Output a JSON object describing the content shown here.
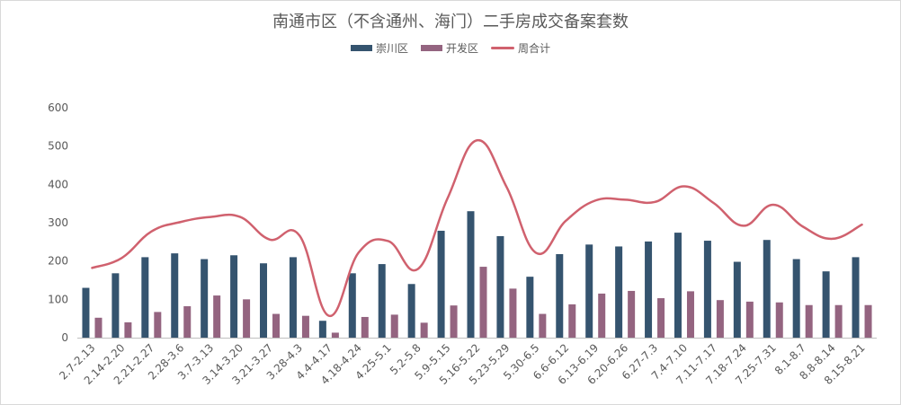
{
  "chart_data": {
    "type": "bar",
    "title": "南通市区（不含通州、海门）二手房成交备案套数",
    "categories": [
      "2.7-2.13",
      "2.14-2.20",
      "2.21-2.27",
      "2.28-3.6",
      "3.7-3.13",
      "3.14-3.20",
      "3.21-3.27",
      "3.28-4.3",
      "4.4-4.17",
      "4.18-4.24",
      "4.25-5.1",
      "5.2-5.8",
      "5.9-5.15",
      "5.16-5.22",
      "5.23-5.29",
      "5.30-6.5",
      "6.6-6.12",
      "6.13-6.19",
      "6.20-6.26",
      "6.27-7.3",
      "7.4-7.10",
      "7.11-7.17",
      "7.18-7.24",
      "7.25-7.31",
      "8.1-8.7",
      "8.8-8.14",
      "8.15-8.21"
    ],
    "series": [
      {
        "name": "崇川区",
        "type": "bar",
        "color": "#35546f",
        "values": [
          130,
          168,
          210,
          220,
          205,
          215,
          194,
          210,
          44,
          168,
          192,
          140,
          279,
          330,
          265,
          159,
          218,
          243,
          238,
          251,
          274,
          253,
          198,
          255,
          205,
          173,
          210
        ]
      },
      {
        "name": "开发区",
        "type": "bar",
        "color": "#946480",
        "values": [
          52,
          40,
          67,
          82,
          110,
          100,
          62,
          57,
          13,
          54,
          60,
          39,
          84,
          185,
          128,
          62,
          87,
          115,
          122,
          103,
          121,
          98,
          94,
          92,
          85,
          85,
          85
        ]
      },
      {
        "name": "周合计",
        "type": "line",
        "color": "#d0616e",
        "values": [
          182,
          208,
          277,
          302,
          315,
          315,
          256,
          267,
          57,
          222,
          252,
          179,
          363,
          515,
          393,
          221,
          305,
          358,
          360,
          354,
          395,
          351,
          292,
          347,
          290,
          258,
          295
        ]
      }
    ],
    "ylim": [
      0,
      600
    ],
    "yticks": [
      0,
      100,
      200,
      300,
      400,
      500,
      600
    ],
    "grid": false,
    "legend": "top"
  }
}
